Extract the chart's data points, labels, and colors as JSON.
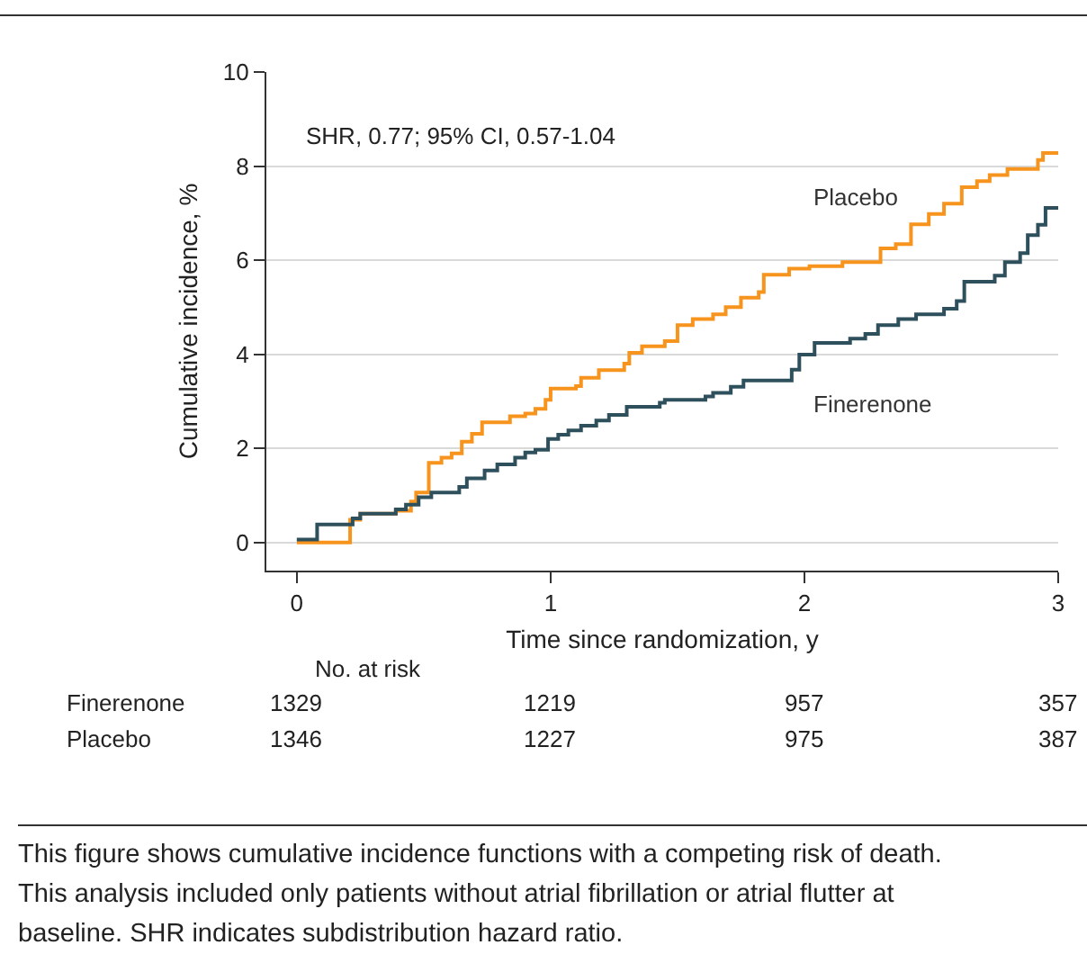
{
  "chart_data": {
    "type": "step",
    "xlabel": "Time since randomization, y",
    "ylabel": "Cumulative incidence, %",
    "xlim": [
      -0.12,
      3
    ],
    "xticks": [
      0,
      1,
      2,
      3
    ],
    "ylim": [
      -0.6,
      10
    ],
    "yticks": [
      0,
      2,
      4,
      6,
      8,
      10
    ],
    "grid": "y",
    "legend": false,
    "series": [
      {
        "name": "Placebo",
        "color": "#f7941d",
        "x": [
          0,
          0.11,
          0.21,
          0.25,
          0.39,
          0.45,
          0.47,
          0.52,
          0.57,
          0.61,
          0.65,
          0.69,
          0.73,
          0.84,
          0.9,
          0.94,
          0.98,
          1.0,
          1.1,
          1.12,
          1.19,
          1.29,
          1.31,
          1.36,
          1.45,
          1.5,
          1.56,
          1.64,
          1.69,
          1.75,
          1.82,
          1.84,
          1.94,
          2.02,
          2.15,
          2.3,
          2.36,
          2.42,
          2.49,
          2.55,
          2.62,
          2.68,
          2.73,
          2.8,
          2.92,
          2.94,
          3.0
        ],
        "values": [
          0,
          0,
          0.48,
          0.61,
          0.67,
          0.87,
          1.06,
          1.69,
          1.8,
          1.89,
          2.14,
          2.31,
          2.55,
          2.68,
          2.74,
          2.84,
          3.03,
          3.27,
          3.32,
          3.5,
          3.66,
          3.8,
          4.03,
          4.17,
          4.28,
          4.62,
          4.75,
          4.85,
          5.0,
          5.2,
          5.32,
          5.69,
          5.82,
          5.87,
          5.96,
          6.25,
          6.34,
          6.76,
          6.98,
          7.2,
          7.55,
          7.68,
          7.81,
          7.94,
          8.13,
          8.28,
          8.28
        ]
      },
      {
        "name": "Finerenone",
        "color": "#2e4f5c",
        "x": [
          0,
          0.08,
          0.22,
          0.25,
          0.39,
          0.43,
          0.48,
          0.53,
          0.64,
          0.67,
          0.74,
          0.79,
          0.86,
          0.9,
          0.94,
          0.99,
          1.03,
          1.07,
          1.12,
          1.18,
          1.23,
          1.3,
          1.43,
          1.45,
          1.61,
          1.64,
          1.71,
          1.76,
          1.95,
          1.98,
          2.04,
          2.18,
          2.24,
          2.29,
          2.37,
          2.44,
          2.55,
          2.6,
          2.63,
          2.75,
          2.79,
          2.85,
          2.88,
          2.92,
          2.95,
          3.0
        ],
        "values": [
          0.06,
          0.38,
          0.51,
          0.61,
          0.7,
          0.8,
          0.96,
          1.06,
          1.18,
          1.36,
          1.53,
          1.66,
          1.8,
          1.91,
          1.97,
          2.2,
          2.29,
          2.38,
          2.48,
          2.59,
          2.71,
          2.88,
          2.97,
          3.03,
          3.1,
          3.18,
          3.31,
          3.44,
          3.67,
          3.99,
          4.24,
          4.33,
          4.43,
          4.62,
          4.75,
          4.85,
          4.97,
          5.13,
          5.54,
          5.67,
          5.96,
          6.15,
          6.53,
          6.75,
          7.11,
          7.11
        ]
      }
    ],
    "annotations": [
      "SHR, 0.77; 95% CI, 0.57-1.04",
      "No. at risk",
      "Finerenone",
      "1329",
      "1219",
      "957",
      "357",
      "Placebo",
      "1346",
      "1227",
      "975",
      "387",
      "This figure shows cumulative incidence functions with a competing risk of death. This analysis included only patients without atrial fibrillation or atrial flutter at baseline. SHR indicates subdistribution hazard ratio."
    ]
  }
}
